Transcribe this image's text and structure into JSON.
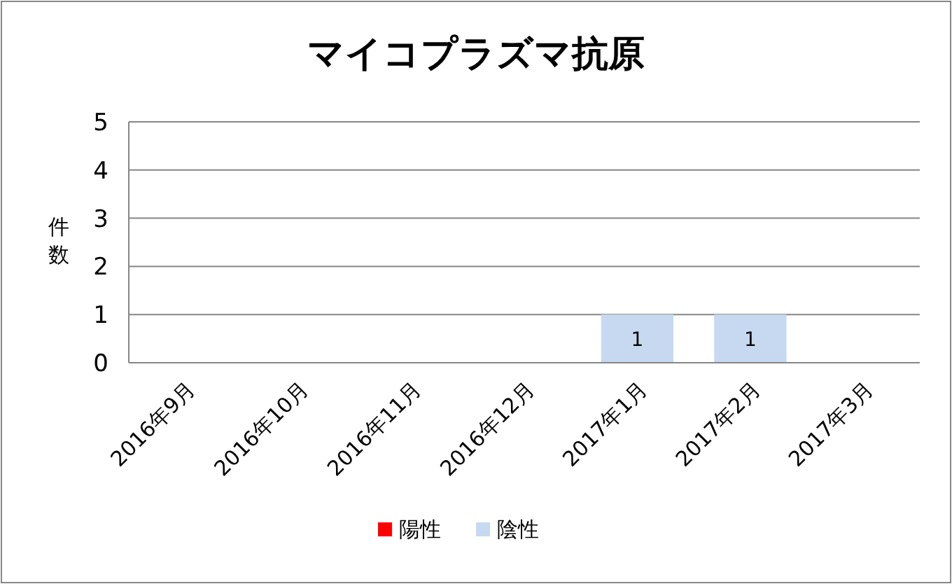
{
  "chart_data": {
    "type": "bar",
    "title": "マイコプラズマ抗原",
    "ylabel": "件数",
    "categories": [
      "2016年9月",
      "2016年10月",
      "2016年11月",
      "2016年12月",
      "2017年1月",
      "2017年2月",
      "2017年3月"
    ],
    "stacked": true,
    "ylim": [
      0,
      5
    ],
    "yticks": [
      0,
      1,
      2,
      3,
      4,
      5
    ],
    "grid": "y",
    "legend": "bottom",
    "series": [
      {
        "name": "陽性",
        "color": "#ff0000",
        "values": [
          0,
          0,
          0,
          0,
          0,
          0,
          0
        ]
      },
      {
        "name": "陰性",
        "color": "#c6d9f1",
        "values": [
          0,
          0,
          0,
          0,
          1,
          1,
          0
        ],
        "value_labels": [
          null,
          null,
          null,
          null,
          "1",
          "1",
          null
        ]
      }
    ]
  }
}
